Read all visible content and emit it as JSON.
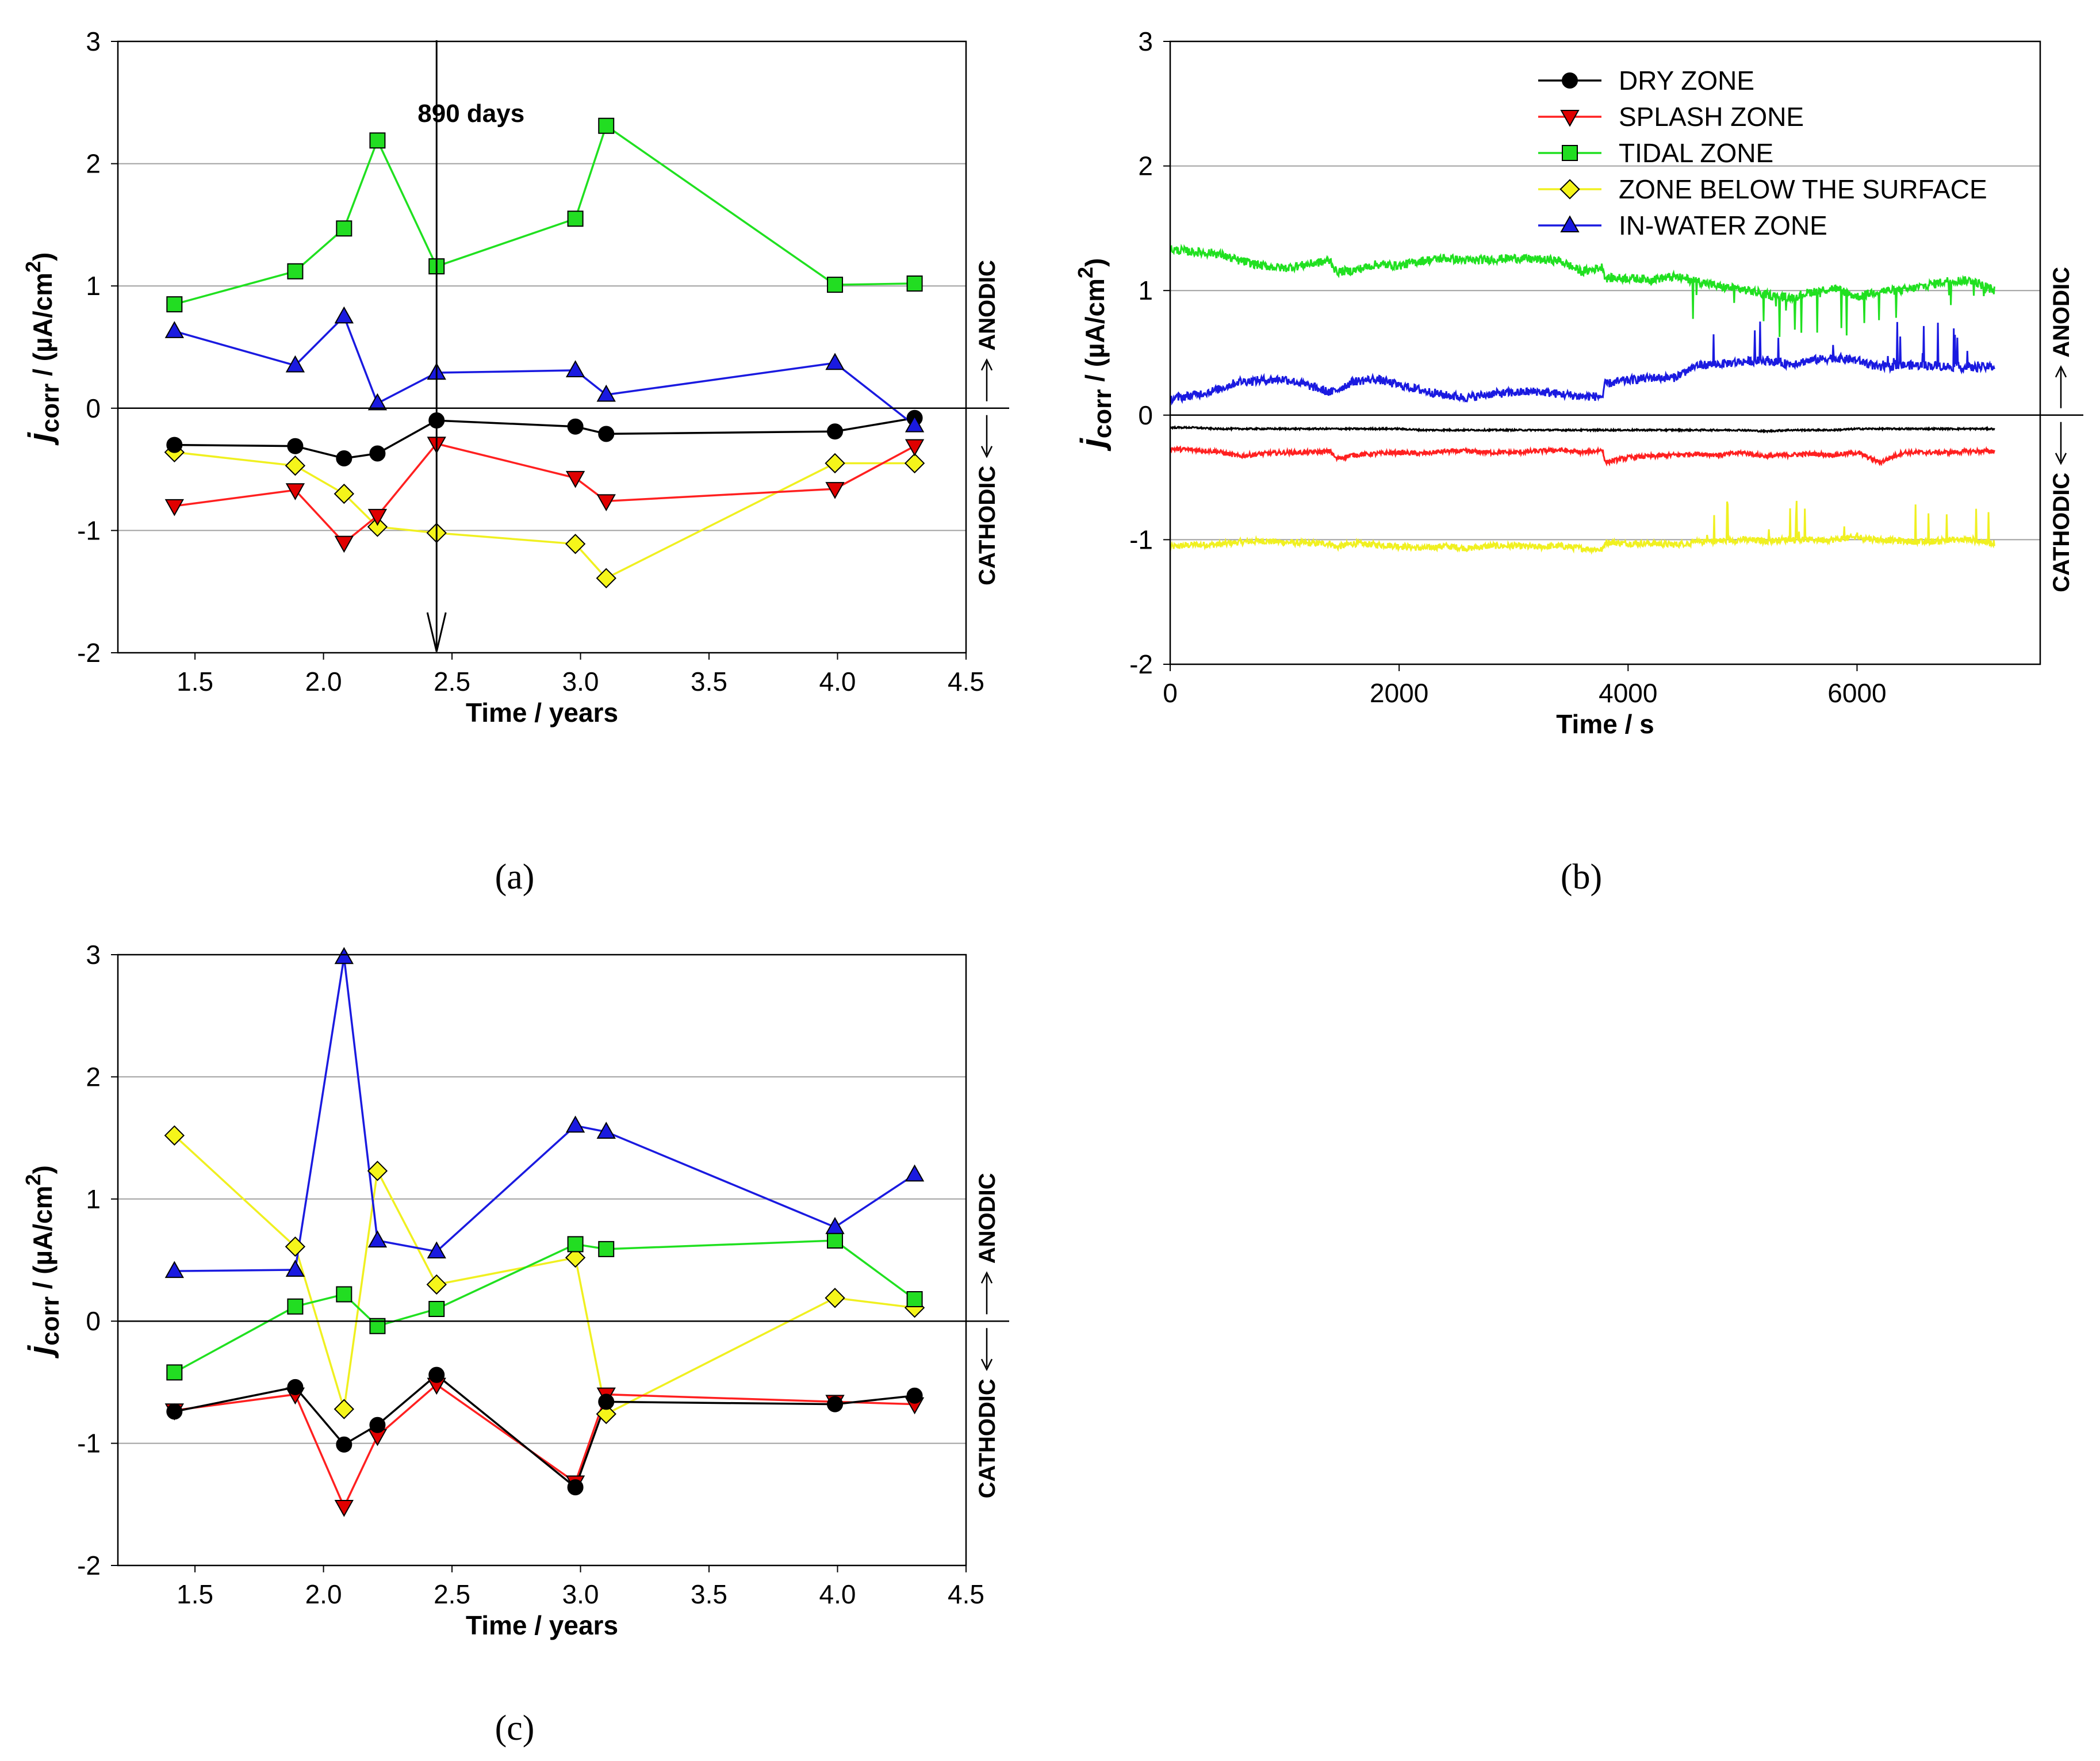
{
  "series_styles": [
    {
      "key": "dry",
      "name": "DRY ZONE",
      "color": "#000000",
      "marker": "circle",
      "fill": "#000000"
    },
    {
      "key": "splash",
      "name": "SPLASH ZONE",
      "color": "#ff2020",
      "marker": "triangle-down",
      "fill": "#e00000"
    },
    {
      "key": "tidal",
      "name": "TIDAL ZONE",
      "color": "#20e020",
      "marker": "square",
      "fill": "#22dd22"
    },
    {
      "key": "below",
      "name": "ZONE BELOW THE SURFACE",
      "color": "#f0f020",
      "marker": "diamond",
      "fill": "#f5f51a"
    },
    {
      "key": "water",
      "name": "IN-WATER ZONE",
      "color": "#1a1ae0",
      "marker": "triangle-up",
      "fill": "#1a1ae0"
    }
  ],
  "chart_data": [
    {
      "id": "a",
      "type": "line",
      "panel_label": "(a)",
      "xlabel": "Time / years",
      "ylabel_main": "j",
      "ylabel_sub": "corr",
      "ylabel_rest": " / (µA/cm",
      "ylabel_sup": "2",
      "ylabel_close": ")",
      "xlim": [
        1.2,
        4.5
      ],
      "ylim": [
        -2,
        3
      ],
      "xticks": [
        "1.5",
        "2.0",
        "2.5",
        "3.0",
        "3.5",
        "4.0",
        "4.5"
      ],
      "xtick_values": [
        1.5,
        2.0,
        2.5,
        3.0,
        3.5,
        4.0,
        4.5
      ],
      "yticks": [
        "-2",
        "-1",
        "0",
        "1",
        "2",
        "3"
      ],
      "ytick_values": [
        -2,
        -1,
        0,
        1,
        2,
        3
      ],
      "anodic_label": "ANODIC",
      "cathodic_label": "CATHODIC",
      "annotation": {
        "text": "890 days",
        "x": 2.44
      },
      "x": [
        1.42,
        1.89,
        2.08,
        2.21,
        2.44,
        2.98,
        3.1,
        3.99,
        4.3
      ],
      "series": [
        {
          "key": "dry",
          "values": [
            -0.3,
            -0.31,
            -0.41,
            -0.37,
            -0.1,
            -0.15,
            -0.21,
            -0.19,
            -0.08
          ]
        },
        {
          "key": "splash",
          "values": [
            -0.8,
            -0.67,
            -1.1,
            -0.88,
            -0.29,
            -0.57,
            -0.76,
            -0.66,
            -0.31
          ]
        },
        {
          "key": "tidal",
          "values": [
            0.85,
            1.12,
            1.47,
            2.19,
            1.16,
            1.55,
            2.31,
            1.01,
            1.02
          ]
        },
        {
          "key": "below",
          "values": [
            -0.36,
            -0.47,
            -0.7,
            -0.97,
            -1.02,
            -1.11,
            -1.39,
            -0.45,
            -0.45
          ]
        },
        {
          "key": "water",
          "values": [
            0.63,
            0.35,
            0.75,
            0.04,
            0.29,
            0.31,
            0.11,
            0.37,
            -0.14
          ]
        }
      ]
    },
    {
      "id": "b",
      "type": "line",
      "panel_label": "(b)",
      "xlabel": "Time / s",
      "ylabel_main": "j",
      "ylabel_sub": "corr",
      "ylabel_rest": " / (µA/cm",
      "ylabel_sup": "2",
      "ylabel_close": ")",
      "xlim": [
        0,
        7600
      ],
      "ylim": [
        -2,
        3
      ],
      "xticks": [
        "0",
        "2000",
        "4000",
        "6000"
      ],
      "xtick_values": [
        0,
        2000,
        4000,
        6000
      ],
      "yticks": [
        "-2",
        "-1",
        "0",
        "1",
        "2",
        "3"
      ],
      "ytick_values": [
        -2,
        -1,
        0,
        1,
        2,
        3
      ],
      "anodic_label": "ANODIC",
      "cathodic_label": "CATHODIC",
      "legend_position": "top-right",
      "x": [
        0,
        200,
        400,
        600,
        800,
        1000,
        1200,
        1400,
        1450,
        1600,
        1800,
        2000,
        2200,
        2400,
        2600,
        2800,
        3000,
        3200,
        3400,
        3600,
        3780,
        3800,
        4000,
        4200,
        4400,
        4600,
        4800,
        5000,
        5200,
        5400,
        5600,
        5800,
        6000,
        6200,
        6400,
        6600,
        6800,
        7000,
        7200
      ],
      "series": [
        {
          "key": "dry",
          "values": [
            -0.1,
            -0.1,
            -0.11,
            -0.11,
            -0.11,
            -0.11,
            -0.11,
            -0.11,
            -0.11,
            -0.11,
            -0.11,
            -0.11,
            -0.12,
            -0.12,
            -0.12,
            -0.12,
            -0.12,
            -0.12,
            -0.12,
            -0.12,
            -0.12,
            -0.12,
            -0.12,
            -0.12,
            -0.12,
            -0.12,
            -0.12,
            -0.12,
            -0.13,
            -0.12,
            -0.12,
            -0.12,
            -0.11,
            -0.11,
            -0.11,
            -0.11,
            -0.11,
            -0.11,
            -0.11
          ]
        },
        {
          "key": "splash",
          "values": [
            -0.27,
            -0.28,
            -0.29,
            -0.33,
            -0.31,
            -0.3,
            -0.3,
            -0.29,
            -0.35,
            -0.32,
            -0.31,
            -0.3,
            -0.31,
            -0.29,
            -0.29,
            -0.3,
            -0.3,
            -0.29,
            -0.28,
            -0.3,
            -0.28,
            -0.38,
            -0.34,
            -0.33,
            -0.32,
            -0.31,
            -0.32,
            -0.3,
            -0.33,
            -0.32,
            -0.31,
            -0.32,
            -0.3,
            -0.38,
            -0.3,
            -0.3,
            -0.3,
            -0.29,
            -0.29
          ]
        },
        {
          "key": "tidal",
          "values": [
            1.33,
            1.31,
            1.3,
            1.24,
            1.2,
            1.18,
            1.21,
            1.24,
            1.15,
            1.16,
            1.21,
            1.2,
            1.24,
            1.26,
            1.24,
            1.25,
            1.26,
            1.25,
            1.24,
            1.15,
            1.19,
            1.1,
            1.1,
            1.09,
            1.11,
            1.08,
            1.03,
            1.01,
            0.97,
            0.94,
            0.99,
            1.02,
            0.95,
            1.0,
            1.0,
            1.04,
            1.08,
            1.08,
            1.0
          ]
        },
        {
          "key": "below",
          "values": [
            -1.06,
            -1.04,
            -1.04,
            -1.02,
            -1.01,
            -1.02,
            -1.03,
            -1.03,
            -1.06,
            -1.03,
            -1.04,
            -1.05,
            -1.07,
            -1.05,
            -1.07,
            -1.05,
            -1.05,
            -1.06,
            -1.05,
            -1.07,
            -1.08,
            -1.02,
            -1.03,
            -1.03,
            -1.04,
            -1.02,
            -1.01,
            -1.0,
            -1.01,
            -1.0,
            -1.0,
            -1.0,
            -0.98,
            -1.0,
            -1.01,
            -1.02,
            -1.0,
            -1.0,
            -1.03
          ]
        },
        {
          "key": "water",
          "values": [
            0.13,
            0.16,
            0.2,
            0.27,
            0.28,
            0.29,
            0.24,
            0.18,
            0.2,
            0.27,
            0.29,
            0.24,
            0.2,
            0.16,
            0.14,
            0.17,
            0.18,
            0.19,
            0.17,
            0.15,
            0.15,
            0.25,
            0.28,
            0.3,
            0.3,
            0.4,
            0.41,
            0.43,
            0.44,
            0.41,
            0.44,
            0.46,
            0.44,
            0.38,
            0.4,
            0.4,
            0.39,
            0.38,
            0.39
          ]
        }
      ]
    },
    {
      "id": "c",
      "type": "line",
      "panel_label": "(c)",
      "xlabel": "Time / years",
      "ylabel_main": "j",
      "ylabel_sub": "corr",
      "ylabel_rest": " / (µA/cm",
      "ylabel_sup": "2",
      "ylabel_close": ")",
      "xlim": [
        1.2,
        4.5
      ],
      "ylim": [
        -2,
        3
      ],
      "xticks": [
        "1.5",
        "2.0",
        "2.5",
        "3.0",
        "3.5",
        "4.0",
        "4.5"
      ],
      "xtick_values": [
        1.5,
        2.0,
        2.5,
        3.0,
        3.5,
        4.0,
        4.5
      ],
      "yticks": [
        "-2",
        "-1",
        "0",
        "1",
        "2",
        "3"
      ],
      "ytick_values": [
        -2,
        -1,
        0,
        1,
        2,
        3
      ],
      "anodic_label": "ANODIC",
      "cathodic_label": "CATHODIC",
      "x": [
        1.42,
        1.89,
        2.08,
        2.21,
        2.44,
        2.98,
        3.1,
        3.99,
        4.3
      ],
      "series": [
        {
          "key": "dry",
          "values": [
            -0.74,
            -0.54,
            -1.01,
            -0.85,
            -0.44,
            -1.36,
            -0.66,
            -0.68,
            -0.61
          ]
        },
        {
          "key": "splash",
          "values": [
            -0.73,
            -0.6,
            -1.52,
            -0.94,
            -0.52,
            -1.32,
            -0.6,
            -0.66,
            -0.68
          ]
        },
        {
          "key": "tidal",
          "values": [
            -0.42,
            0.12,
            0.22,
            -0.04,
            0.1,
            0.63,
            0.59,
            0.66,
            0.18
          ]
        },
        {
          "key": "below",
          "values": [
            1.52,
            0.61,
            -0.72,
            1.23,
            0.3,
            0.52,
            -0.76,
            0.19,
            0.11
          ]
        },
        {
          "key": "water",
          "values": [
            0.41,
            0.42,
            2.98,
            0.66,
            0.57,
            1.6,
            1.55,
            0.77,
            1.2
          ]
        }
      ]
    }
  ]
}
